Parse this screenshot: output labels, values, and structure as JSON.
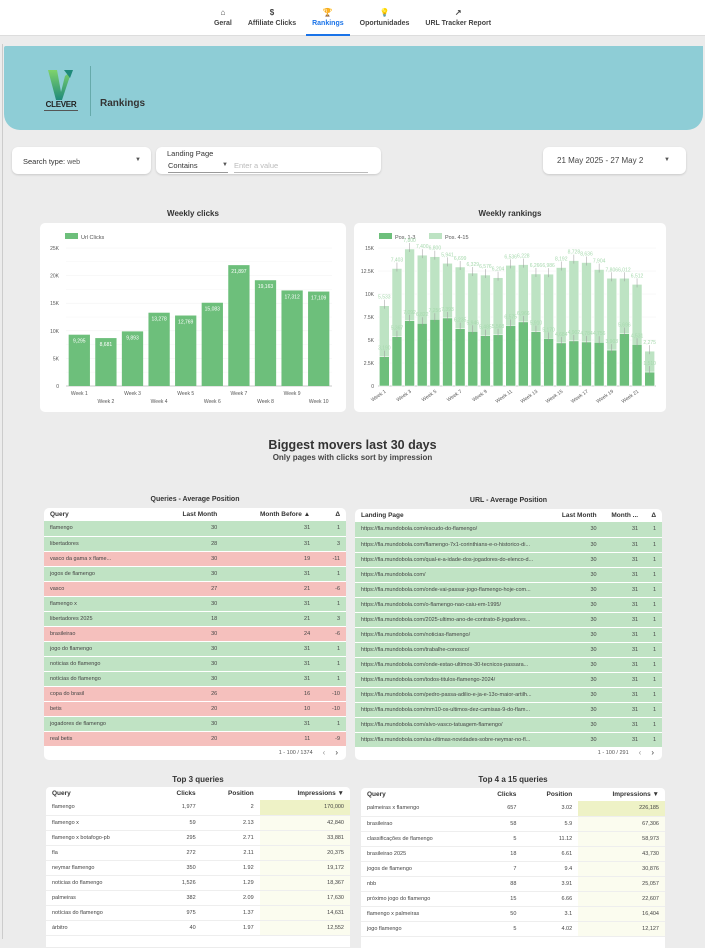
{
  "nav": {
    "items": [
      {
        "label": "Geral",
        "icon": "home-icon",
        "glyph": "⌂",
        "active": false
      },
      {
        "label": "Affiliate Clicks",
        "icon": "dollar-coin-icon",
        "glyph": "$",
        "active": false
      },
      {
        "label": "Rankings",
        "icon": "trophy-icon",
        "glyph": "🏆",
        "active": true
      },
      {
        "label": "Oportunidades",
        "icon": "lightbulb-icon",
        "glyph": "💡",
        "active": false
      },
      {
        "label": "URL Tracker Report",
        "icon": "trending-up-icon",
        "glyph": "↗",
        "active": false
      }
    ]
  },
  "banner": {
    "logo_text": "CLEVER",
    "title": "Rankings",
    "color": "#8ecdd6"
  },
  "filters": {
    "search_type_label": "Search type:",
    "search_type_value": "web",
    "landing_page_label": "Landing Page",
    "landing_page_operator": "Contains",
    "landing_page_placeholder": "Enter a value",
    "date_range": "21 May 2025 - 27 May 2"
  },
  "chart_data": [
    {
      "type": "bar",
      "title": "Weekly clicks",
      "legend": [
        "Url Clicks"
      ],
      "legend_position": "top-left",
      "categories": [
        "Week 1",
        "Week 2",
        "Week 3",
        "Week 4",
        "Week 5",
        "Week 6",
        "Week 7",
        "Week 8",
        "Week 9",
        "Week 10"
      ],
      "values": [
        9295,
        8681,
        9893,
        13278,
        12769,
        15083,
        21897,
        19163,
        17312,
        17109
      ],
      "value_labels": [
        "9,295",
        "8,681",
        "9,893",
        "13,278",
        "12,769",
        "15,083",
        "21,897",
        "19,163",
        "17,312",
        "17,109"
      ],
      "ylim": [
        0,
        25000
      ],
      "yticks": [
        0,
        5000,
        10000,
        15000,
        20000,
        25000
      ],
      "ytick_labels": [
        "0",
        "5K",
        "10K",
        "15K",
        "20K",
        "25K"
      ],
      "grid": true,
      "color": "#6dbf7b"
    },
    {
      "type": "bar",
      "stacked": true,
      "title": "Weekly rankings",
      "legend_position": "top-left",
      "categories": [
        "Week 1",
        "Week 2",
        "Week 3",
        "Week 4",
        "Week 5",
        "Week 6",
        "Week 7",
        "Week 8",
        "Week 9",
        "Week 10",
        "Week 11",
        "Week 12",
        "Week 13",
        "Week 14",
        "Week 15",
        "Week 16",
        "Week 17",
        "Week 18",
        "Week 19",
        "Week 20",
        "Week 21",
        "Week 22"
      ],
      "xtick_labels": [
        "Week 1",
        "",
        "Week 3",
        "",
        "Week 5",
        "",
        "Week 7",
        "",
        "Week 9",
        "",
        "Week 11",
        "",
        "Week 13",
        "",
        "Week 15",
        "",
        "Week 17",
        "",
        "Week 19",
        "",
        "Week 21",
        ""
      ],
      "series": [
        {
          "name": "Pos. 1-3",
          "color": "#6dbf7b",
          "values": [
            3190,
            5367,
            7092,
            6822,
            7256,
            7393,
            6235,
            5946,
            5485,
            5568,
            6575,
            6966,
            5910,
            5170,
            4684,
            4902,
            4784,
            4756,
            3903,
            5696,
            4531,
            1510
          ]
        },
        {
          "name": "Pos. 4-15",
          "color": "#bde3c3",
          "values": [
            5533,
            7403,
            7800,
            7400,
            6800,
            5941,
            6699,
            6329,
            6576,
            6204,
            6536,
            6228,
            6266,
            6986,
            8192,
            8728,
            8636,
            7904,
            7806,
            6012,
            6512,
            2275
          ]
        }
      ],
      "ylim": [
        0,
        15000
      ],
      "yticks": [
        0,
        2500,
        5000,
        7500,
        10000,
        12500,
        15000
      ],
      "ytick_labels": [
        "0",
        "2.5K",
        "5K",
        "7.5K",
        "10K",
        "12.5K",
        "15K"
      ],
      "grid": true
    }
  ],
  "movers": {
    "title": "Biggest movers last 30 days",
    "subtitle": "Only pages with clicks sort by impression"
  },
  "queries_avg": {
    "title": "Queries - Average Position",
    "columns": [
      "Query",
      "Last Month",
      "Month Before ▲",
      "Δ"
    ],
    "rows": [
      {
        "query": "flamengo",
        "last": "30",
        "before": "31",
        "delta": "1",
        "trend": "pos"
      },
      {
        "query": "libertadores",
        "last": "28",
        "before": "31",
        "delta": "3",
        "trend": "pos"
      },
      {
        "query": "vasco da gama x flame...",
        "last": "30",
        "before": "19",
        "delta": "-11",
        "trend": "neg"
      },
      {
        "query": "jogos de flamengo",
        "last": "30",
        "before": "31",
        "delta": "1",
        "trend": "pos"
      },
      {
        "query": "vasco",
        "last": "27",
        "before": "21",
        "delta": "-6",
        "trend": "neg"
      },
      {
        "query": "flamengo x",
        "last": "30",
        "before": "31",
        "delta": "1",
        "trend": "pos"
      },
      {
        "query": "libertadores 2025",
        "last": "18",
        "before": "21",
        "delta": "3",
        "trend": "pos"
      },
      {
        "query": "brasileirao",
        "last": "30",
        "before": "24",
        "delta": "-6",
        "trend": "neg"
      },
      {
        "query": "jogo do flamengo",
        "last": "30",
        "before": "31",
        "delta": "1",
        "trend": "pos"
      },
      {
        "query": "noticias do flamengo",
        "last": "30",
        "before": "31",
        "delta": "1",
        "trend": "pos"
      },
      {
        "query": "notícias do flamengo",
        "last": "30",
        "before": "31",
        "delta": "1",
        "trend": "pos"
      },
      {
        "query": "copa do brasil",
        "last": "26",
        "before": "16",
        "delta": "-10",
        "trend": "neg"
      },
      {
        "query": "betis",
        "last": "20",
        "before": "10",
        "delta": "-10",
        "trend": "neg"
      },
      {
        "query": "jogadores de flamengo",
        "last": "30",
        "before": "31",
        "delta": "1",
        "trend": "pos"
      },
      {
        "query": "real betis",
        "last": "20",
        "before": "11",
        "delta": "-9",
        "trend": "neg"
      }
    ],
    "pagination": "1 - 100 / 1374"
  },
  "url_avg": {
    "title": "URL - Average Position",
    "columns": [
      "Landing Page",
      "Last Month",
      "Month ...",
      "Δ"
    ],
    "rows": [
      {
        "url": "https://fla.mundobola.com/escudo-do-flamengo/",
        "last": "30",
        "before": "31",
        "delta": "1"
      },
      {
        "url": "https://fla.mundobola.com/flamengo-7x1-corinthians-e-o-historico-di...",
        "last": "30",
        "before": "31",
        "delta": "1"
      },
      {
        "url": "https://fla.mundobola.com/qual-e-a-idade-dos-jogadores-do-elenco-d...",
        "last": "30",
        "before": "31",
        "delta": "1"
      },
      {
        "url": "https://fla.mundobola.com/",
        "last": "30",
        "before": "31",
        "delta": "1"
      },
      {
        "url": "https://fla.mundobola.com/onde-vai-passar-jogo-flamengo-hoje-com...",
        "last": "30",
        "before": "31",
        "delta": "1"
      },
      {
        "url": "https://fla.mundobola.com/o-flamengo-nao-caiu-em-1995/",
        "last": "30",
        "before": "31",
        "delta": "1"
      },
      {
        "url": "https://fla.mundobola.com/2025-ultimo-ano-de-contrato-8-jogadores...",
        "last": "30",
        "before": "31",
        "delta": "1"
      },
      {
        "url": "https://fla.mundobola.com/noticias-flamengo/",
        "last": "30",
        "before": "31",
        "delta": "1"
      },
      {
        "url": "https://fla.mundobola.com/trabalhe-conosco/",
        "last": "30",
        "before": "31",
        "delta": "1"
      },
      {
        "url": "https://fla.mundobola.com/onde-estao-ultimos-30-tecnicos-passara...",
        "last": "30",
        "before": "31",
        "delta": "1"
      },
      {
        "url": "https://fla.mundobola.com/todos-titulos-flamengo-2024/",
        "last": "30",
        "before": "31",
        "delta": "1"
      },
      {
        "url": "https://fla.mundobola.com/pedro-passa-adilio-e-ja-e-13o-maior-artilh...",
        "last": "30",
        "before": "31",
        "delta": "1"
      },
      {
        "url": "https://fla.mundobola.com/mm10-os-ultimos-dez-camisas-9-do-flam...",
        "last": "30",
        "before": "31",
        "delta": "1"
      },
      {
        "url": "https://fla.mundobola.com/alvo-vasco-tatuagem-flamengo/",
        "last": "30",
        "before": "31",
        "delta": "1"
      },
      {
        "url": "https://fla.mundobola.com/as-ultimas-novidades-sobre-neymar-no-fl...",
        "last": "30",
        "before": "31",
        "delta": "1"
      }
    ],
    "pagination": "1 - 100 / 291"
  },
  "top3": {
    "title": "Top 3 queries",
    "columns": [
      "Query",
      "Clicks",
      "Position",
      "Impressions ▼"
    ],
    "rows": [
      {
        "query": "flamengo",
        "clicks": "1,977",
        "position": "2",
        "impressions": "170,000"
      },
      {
        "query": "flamengo x",
        "clicks": "59",
        "position": "2.13",
        "impressions": "42,840"
      },
      {
        "query": "flamengo x botafogo-pb",
        "clicks": "295",
        "position": "2.71",
        "impressions": "33,881"
      },
      {
        "query": "fla",
        "clicks": "272",
        "position": "2.11",
        "impressions": "20,375"
      },
      {
        "query": "neymar flamengo",
        "clicks": "350",
        "position": "1.92",
        "impressions": "19,172"
      },
      {
        "query": "noticias do flamengo",
        "clicks": "1,526",
        "position": "1.29",
        "impressions": "18,367"
      },
      {
        "query": "palmeiras",
        "clicks": "382",
        "position": "2.09",
        "impressions": "17,630"
      },
      {
        "query": "notícias do flamengo",
        "clicks": "975",
        "position": "1.37",
        "impressions": "14,631"
      },
      {
        "query": "árbitro",
        "clicks": "40",
        "position": "1.97",
        "impressions": "12,552"
      }
    ]
  },
  "top4to15": {
    "title": "Top 4 a 15 queries",
    "columns": [
      "Query",
      "Clicks",
      "Position",
      "Impressions ▼"
    ],
    "rows": [
      {
        "query": "palmeiras x flamengo",
        "clicks": "657",
        "position": "3.02",
        "impressions": "226,185"
      },
      {
        "query": "brasileirao",
        "clicks": "58",
        "position": "5.9",
        "impressions": "67,306"
      },
      {
        "query": "classificações de flamengo",
        "clicks": "5",
        "position": "11.12",
        "impressions": "58,973"
      },
      {
        "query": "brasileirao 2025",
        "clicks": "18",
        "position": "6.61",
        "impressions": "43,730"
      },
      {
        "query": "jogos de flamengo",
        "clicks": "7",
        "position": "9.4",
        "impressions": "30,876"
      },
      {
        "query": "nbb",
        "clicks": "88",
        "position": "3.91",
        "impressions": "25,057"
      },
      {
        "query": "próximo jogo do flamengo",
        "clicks": "15",
        "position": "6.66",
        "impressions": "22,607"
      },
      {
        "query": "flamengo x palmeiras",
        "clicks": "50",
        "position": "3.1",
        "impressions": "16,404"
      },
      {
        "query": "jogo flamengo",
        "clicks": "5",
        "position": "4.02",
        "impressions": "12,127"
      }
    ]
  }
}
